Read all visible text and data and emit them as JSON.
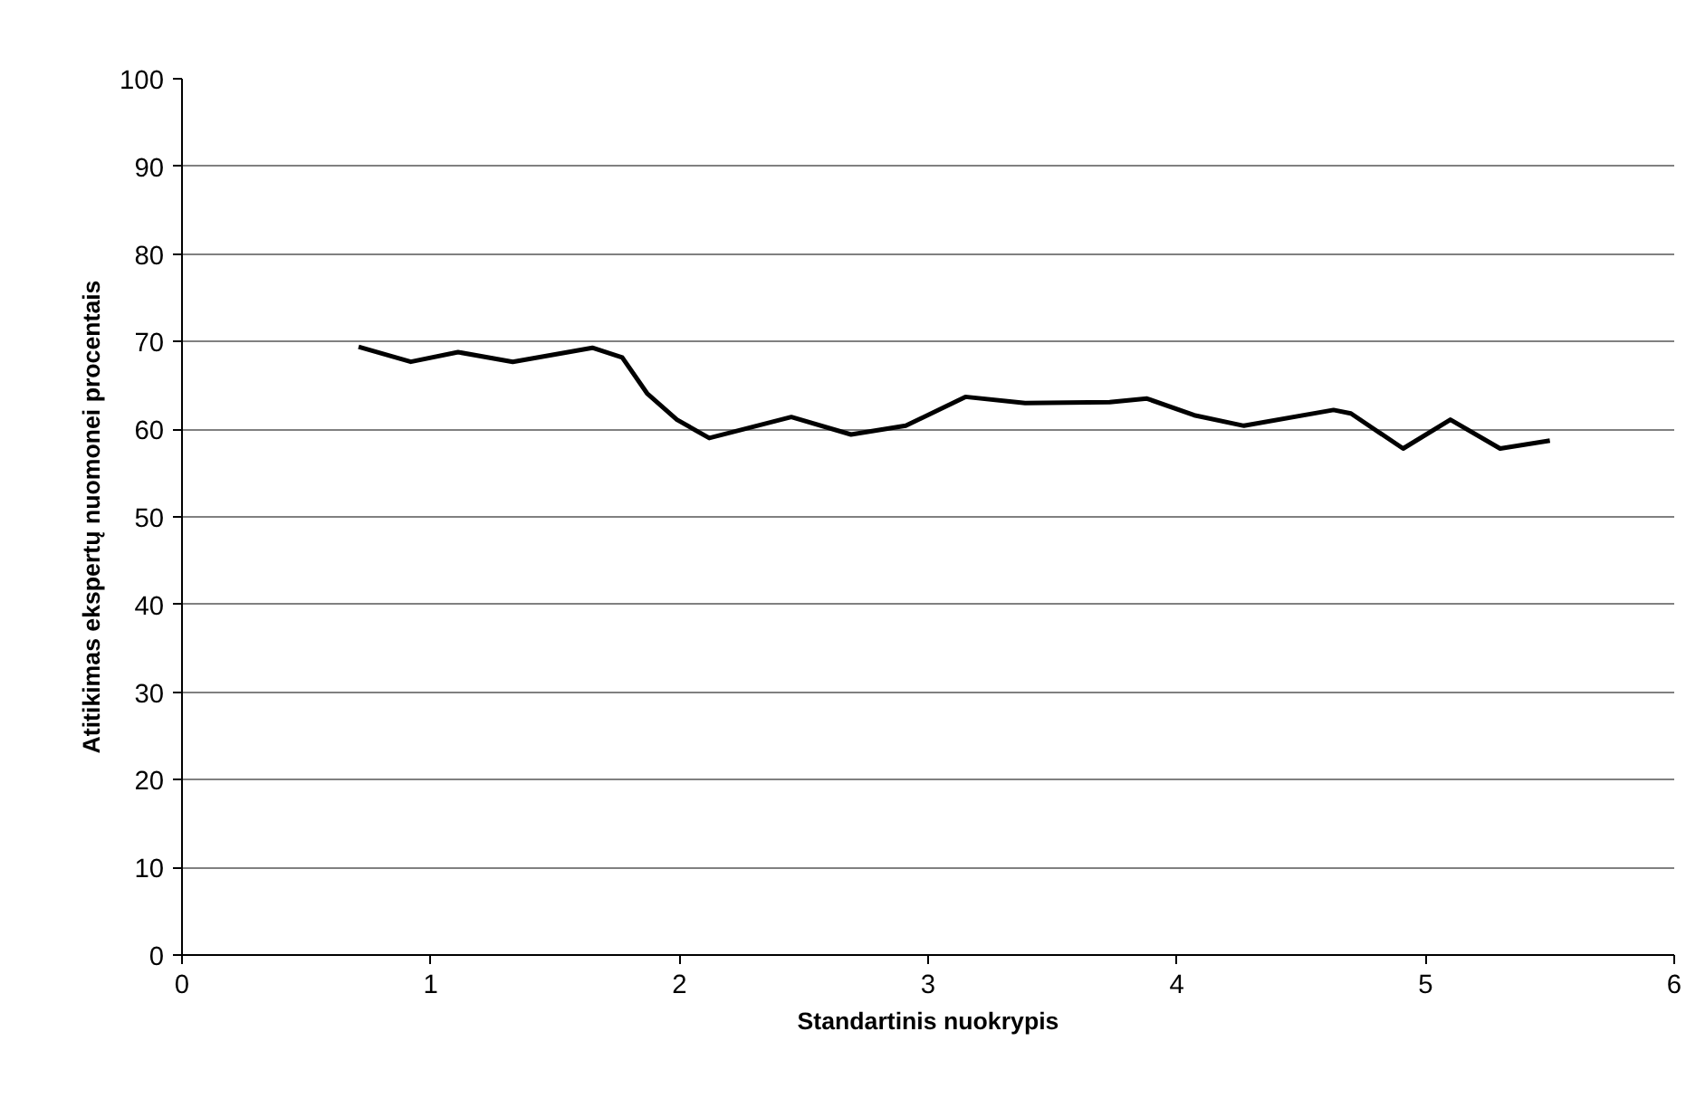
{
  "chart_data": {
    "type": "line",
    "xlabel": "Standartinis nuokrypis",
    "ylabel": "Atitikimas ekspertų nuomonei procentais",
    "x": [
      0.71,
      0.92,
      1.11,
      1.33,
      1.65,
      1.77,
      1.87,
      1.99,
      2.12,
      2.45,
      2.69,
      2.91,
      3.15,
      3.39,
      3.73,
      3.88,
      4.07,
      4.27,
      4.63,
      4.7,
      4.91,
      5.1,
      5.3,
      5.5
    ],
    "series": [
      {
        "color": "#000000",
        "values": [
          69.4,
          67.7,
          68.8,
          67.7,
          69.3,
          68.2,
          64.1,
          61.1,
          59.0,
          61.4,
          59.4,
          60.4,
          63.7,
          63.0,
          63.1,
          63.5,
          61.6,
          60.4,
          62.2,
          61.8,
          57.8,
          61.1,
          57.8,
          58.7
        ]
      }
    ],
    "xlim": [
      0,
      6
    ],
    "xticks": [
      0,
      1,
      2,
      3,
      4,
      5,
      6
    ],
    "ylim": [
      0,
      100
    ],
    "yticks": [
      0,
      10,
      20,
      30,
      40,
      50,
      60,
      70,
      80,
      90,
      100
    ],
    "grid": "y",
    "marker": "none",
    "line_style": "solid"
  }
}
